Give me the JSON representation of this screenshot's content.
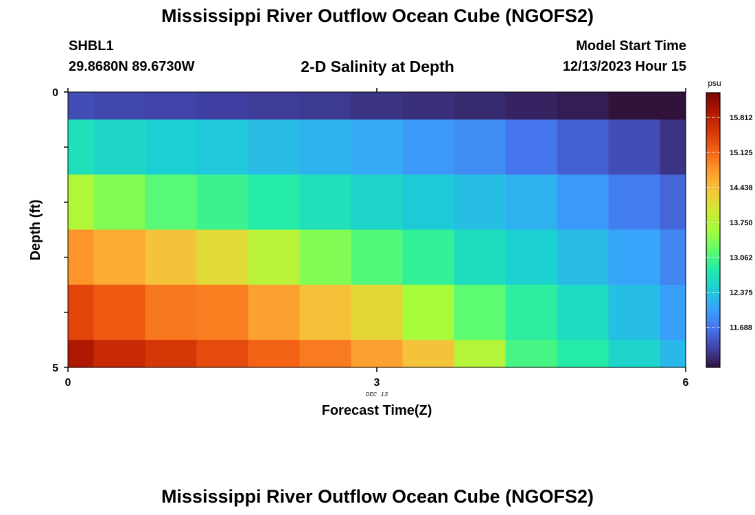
{
  "header": {
    "title": "Mississippi River Outflow Ocean Cube (NGOFS2)",
    "station": "SHBL1",
    "coords": "29.8680N  89.6730W",
    "subtitle": "2-D Salinity at Depth",
    "model_start_label": "Model Start Time",
    "model_start_value": "12/13/2023 Hour 15"
  },
  "footer": {
    "title": "Mississippi River Outflow Ocean Cube (NGOFS2)"
  },
  "chart_data": {
    "type": "heatmap",
    "title": "2-D Salinity at Depth",
    "xlabel": "Forecast Time(Z)",
    "ylabel": "Depth (ft)",
    "x_date_label": "DEC 13",
    "xlim": [
      0,
      6
    ],
    "ylim": [
      0,
      5
    ],
    "y_inverted": true,
    "x_ticks": [
      0,
      3,
      6
    ],
    "x_tick_labels": [
      "0",
      "3",
      "6"
    ],
    "y_tick_labels": [
      "0",
      "5"
    ],
    "x_bin_edges": [
      0,
      0.25,
      0.75,
      1.25,
      1.75,
      2.25,
      2.75,
      3.25,
      3.75,
      4.25,
      4.75,
      5.25,
      5.75,
      6
    ],
    "depth_bin_edges": [
      0,
      0.5,
      1.5,
      2.5,
      3.5,
      4.5,
      5
    ],
    "values": [
      [
        11.35,
        11.3,
        11.28,
        11.25,
        11.22,
        11.2,
        11.15,
        11.12,
        11.08,
        11.03,
        10.98,
        10.8,
        10.6
      ],
      [
        12.65,
        12.55,
        12.45,
        12.38,
        12.28,
        12.2,
        12.12,
        11.98,
        11.88,
        11.68,
        11.5,
        11.35,
        11.15
      ],
      [
        13.72,
        13.4,
        13.15,
        12.98,
        12.82,
        12.66,
        12.52,
        12.4,
        12.3,
        12.18,
        11.98,
        11.75,
        11.55
      ],
      [
        14.8,
        14.6,
        14.4,
        14.15,
        13.78,
        13.4,
        13.12,
        12.92,
        12.62,
        12.48,
        12.28,
        12.08,
        11.82
      ],
      [
        15.4,
        15.22,
        15.0,
        14.95,
        14.7,
        14.42,
        14.2,
        13.62,
        13.18,
        12.88,
        12.6,
        12.3,
        12.02
      ],
      [
        15.92,
        15.7,
        15.55,
        15.35,
        15.15,
        14.98,
        14.7,
        14.4,
        13.75,
        13.05,
        12.82,
        12.52,
        12.25
      ]
    ],
    "colorbar": {
      "unit": "psu",
      "min": 10.9,
      "max": 16.3,
      "tick_values": [
        15.812,
        15.125,
        14.438,
        13.75,
        13.062,
        12.375,
        11.688
      ],
      "tick_labels": [
        "15.812",
        "15.125",
        "14.438",
        "13.750",
        "13.062",
        "12.375",
        "11.688"
      ]
    },
    "colormap": [
      "#30123b",
      "#4145ab",
      "#4675ed",
      "#39a2fc",
      "#1bcfd4",
      "#24eca6",
      "#61fc6c",
      "#a4fc3b",
      "#d1e834",
      "#f3c63a",
      "#fe9b2d",
      "#f36315",
      "#d93806",
      "#b11901",
      "#7a0402"
    ]
  }
}
